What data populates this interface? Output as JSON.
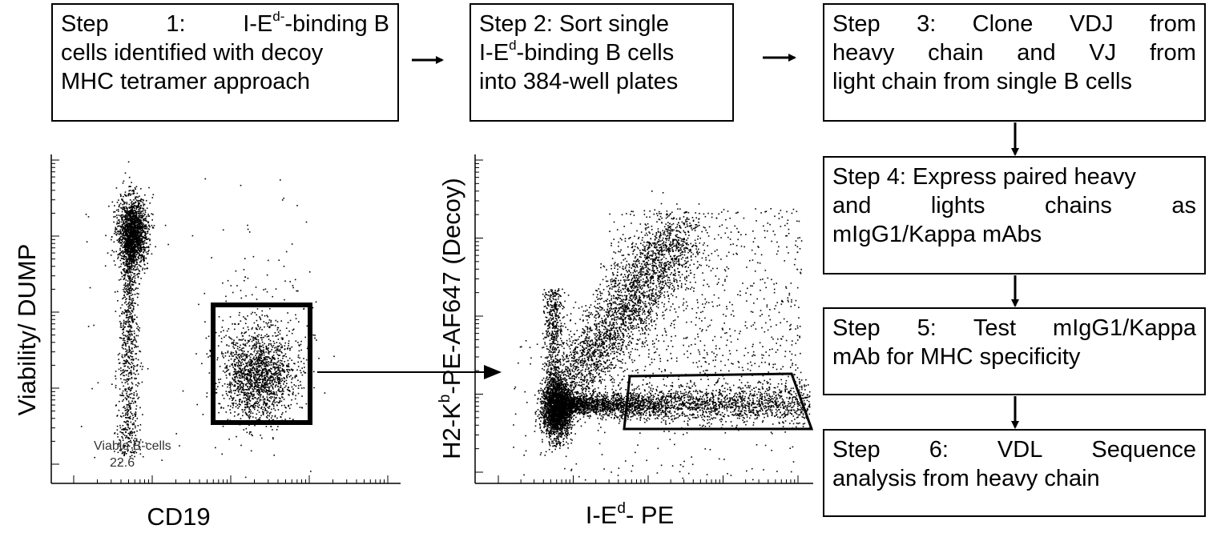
{
  "steps": [
    {
      "id": 1,
      "lines": [
        "Step 1: I-E",
        "d-",
        "-binding B",
        "cells identified with decoy",
        "MHC tetramer approach"
      ]
    },
    {
      "id": 2,
      "lines": [
        "Step 2: Sort single",
        "I-E",
        "d",
        "-binding B cells",
        "into 384-well plates"
      ]
    },
    {
      "id": 3,
      "lines": [
        "Step 3: Clone VDJ from",
        "heavy chain and VJ from",
        "light chain from single B cells"
      ]
    },
    {
      "id": 4,
      "lines": [
        "Step 4: Express paired heavy",
        "and lights chains as",
        "mIgG1/Kappa mAbs"
      ]
    },
    {
      "id": 5,
      "lines": [
        "Step 5: Test mIgG1/Kappa",
        "mAb for MHC specificity"
      ]
    },
    {
      "id": 6,
      "lines": [
        "Step 6: VDL Sequence",
        "analysis from heavy chain"
      ]
    }
  ],
  "plot1": {
    "xlabel": "CD19",
    "ylabel": "Viability/ DUMP",
    "gate_label": "Viable B-cells",
    "gate_value": "22.6"
  },
  "plot2": {
    "xlabel_main": "I-E",
    "xlabel_sup": "d",
    "xlabel_rest": "- PE",
    "ylabel_main": "H2-K",
    "ylabel_sup": "b",
    "ylabel_rest": "-PE-AF647 (Decoy)"
  },
  "colors": {
    "ink": "#000000",
    "background": "#ffffff"
  }
}
